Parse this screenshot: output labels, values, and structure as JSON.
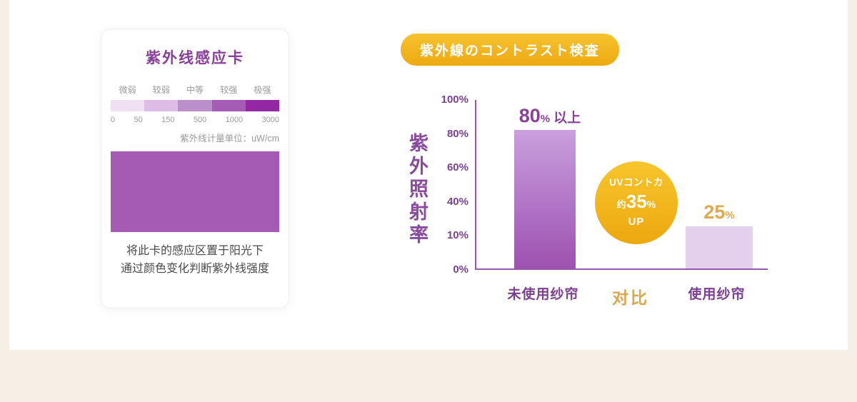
{
  "colors": {
    "purple_text": "#7d3f92",
    "purple_axis": "#9a58ab",
    "gold": "#f2b61e",
    "gold_text": "#e0a94f",
    "page_background": "#f5efe5",
    "panel_background": "#ffffff"
  },
  "uv_card": {
    "title": "紫外线感应卡",
    "scale_labels": [
      "微弱",
      "较弱",
      "中等",
      "较强",
      "极强"
    ],
    "scale_colors": [
      "#f1e0f3",
      "#ddbde5",
      "#bb8fc9",
      "#a55cb4",
      "#9428a4"
    ],
    "scale_numbers": [
      "0",
      "50",
      "150",
      "500",
      "1000",
      "3000"
    ],
    "unit_label": "紫外线计量单位：uW/cm",
    "sensor_color": "#a55ab4",
    "instruction_line1": "将此卡的感应区置于阳光下",
    "instruction_line2": "通过颜色变化判断紫外线强度"
  },
  "chart_data": {
    "type": "bar",
    "title": "紫外線のコントラスト検査",
    "ylabel": "紫外照射率",
    "categories": [
      "未使用纱帘",
      "使用纱帘"
    ],
    "values": [
      82,
      25
    ],
    "bar_value_labels": [
      "80% 以上",
      "25%"
    ],
    "ytick_labels": [
      "100%",
      "80%",
      "60%",
      "40%",
      "10%",
      "0%"
    ],
    "ylim": [
      0,
      100
    ],
    "bar2_color": "#e4cfec",
    "comparison_label": "对比",
    "annotation": "UVコントカ 约35% UP"
  },
  "bar_labels": {
    "bar1": {
      "big": "80",
      "pct": "%",
      "suffix": "以上"
    },
    "bar2": {
      "big": "25",
      "pct": "%"
    }
  },
  "uv_cut_badge": {
    "line1": "UVコントカ",
    "prefix": "约",
    "big": "35",
    "pct": "%",
    "line3": "UP"
  }
}
